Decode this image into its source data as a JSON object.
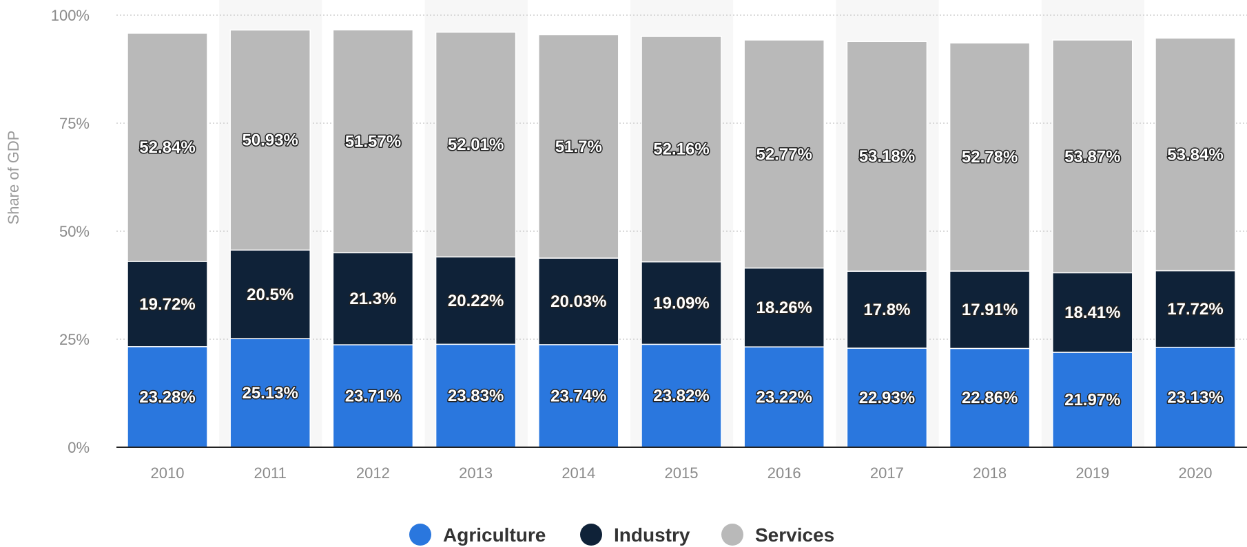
{
  "chart_data": {
    "type": "bar",
    "stacked": true,
    "categories": [
      "2010",
      "2011",
      "2012",
      "2013",
      "2014",
      "2015",
      "2016",
      "2017",
      "2018",
      "2019",
      "2020"
    ],
    "series": [
      {
        "name": "Agriculture",
        "color": "#2a77de",
        "values": [
          23.28,
          25.13,
          23.71,
          23.83,
          23.74,
          23.82,
          23.22,
          22.93,
          22.86,
          21.97,
          23.13
        ],
        "labels": [
          "23.28%",
          "25.13%",
          "23.71%",
          "23.83%",
          "23.74%",
          "23.82%",
          "23.22%",
          "22.93%",
          "22.86%",
          "21.97%",
          "23.13%"
        ]
      },
      {
        "name": "Industry",
        "color": "#0f2238",
        "values": [
          19.72,
          20.5,
          21.3,
          20.22,
          20.03,
          19.09,
          18.26,
          17.8,
          17.91,
          18.41,
          17.72
        ],
        "labels": [
          "19.72%",
          "20.5%",
          "21.3%",
          "20.22%",
          "20.03%",
          "19.09%",
          "18.26%",
          "17.8%",
          "17.91%",
          "18.41%",
          "17.72%"
        ]
      },
      {
        "name": "Services",
        "color": "#b9b9b9",
        "values": [
          52.84,
          50.93,
          51.57,
          52.01,
          51.7,
          52.16,
          52.77,
          53.18,
          52.78,
          53.87,
          53.84
        ],
        "labels": [
          "52.84%",
          "50.93%",
          "51.57%",
          "52.01%",
          "51.7%",
          "52.16%",
          "52.77%",
          "53.18%",
          "52.78%",
          "53.87%",
          "53.84%"
        ]
      }
    ],
    "ylabel": "Share of GDP",
    "ylim": [
      0,
      100
    ],
    "yticks": [
      0,
      25,
      50,
      75,
      100
    ],
    "ytick_labels": [
      "0%",
      "25%",
      "50%",
      "75%",
      "100%"
    ],
    "grid": true,
    "legend_position": "bottom-center"
  }
}
